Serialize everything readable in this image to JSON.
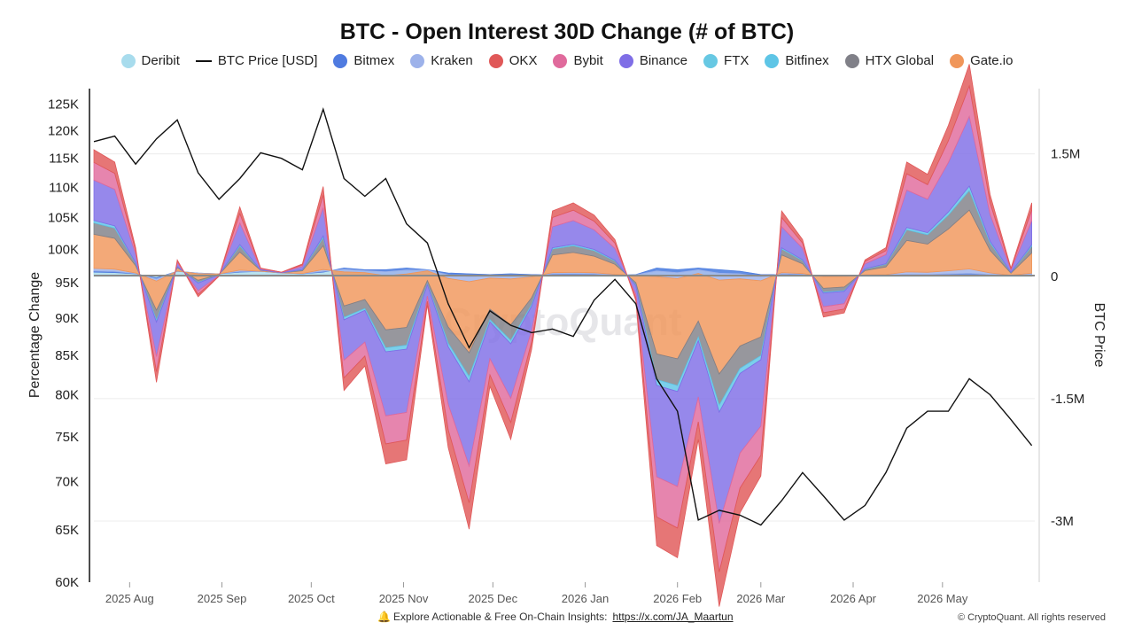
{
  "title": "BTC - Open Interest 30D Change (# of BTC)",
  "legend": [
    {
      "label": "Deribit",
      "color": "#a8dced",
      "kind": "dot"
    },
    {
      "label": "BTC Price [USD]",
      "color": "#111111",
      "kind": "line"
    },
    {
      "label": "Bitmex",
      "color": "#4f7be0",
      "kind": "dot"
    },
    {
      "label": "Kraken",
      "color": "#9db2ea",
      "kind": "dot"
    },
    {
      "label": "OKX",
      "color": "#e05858",
      "kind": "dot"
    },
    {
      "label": "Bybit",
      "color": "#e06a9c",
      "kind": "dot"
    },
    {
      "label": "Binance",
      "color": "#7f6ee6",
      "kind": "dot"
    },
    {
      "label": "FTX",
      "color": "#67c8e3",
      "kind": "dot"
    },
    {
      "label": "Bitfinex",
      "color": "#5ec5e6",
      "kind": "dot"
    },
    {
      "label": "HTX Global",
      "color": "#808088",
      "kind": "dot"
    },
    {
      "label": "Gate.io",
      "color": "#f0965a",
      "kind": "dot"
    }
  ],
  "watermark": "CryptoQuant",
  "footer": {
    "text": "Explore Actionable & Free On-Chain Insights:",
    "link": "https://x.com/JA_Maartun",
    "copyright": "© CryptoQuant. All rights reserved",
    "icon": "bell-icon"
  },
  "chart_data": {
    "type": "area",
    "title": "BTC - Open Interest 30D Change (# of BTC)",
    "x_tick_labels": [
      "2025 Aug",
      "2025 Sep",
      "2025 Oct",
      "2025 Nov",
      "2025 Dec",
      "2026 Jan",
      "2026 Feb",
      "2026 Mar",
      "2026 Apr",
      "2026 May"
    ],
    "x_range": [
      "2025-07-20",
      "2026-06-01"
    ],
    "left_axis": {
      "label": "Percentage Change",
      "ticks": [
        "125K",
        "120K",
        "115K",
        "110K",
        "105K",
        "100K",
        "95K",
        "90K",
        "85K",
        "80K",
        "75K",
        "70K",
        "65K",
        "60K"
      ],
      "tick_values": [
        125000,
        120000,
        115000,
        110000,
        105000,
        100000,
        95000,
        90000,
        85000,
        80000,
        75000,
        70000,
        65000,
        60000
      ],
      "scale": "log",
      "range": [
        60000,
        128000
      ]
    },
    "right_axis": {
      "label": "BTC Price",
      "ticks": [
        "1.5M",
        "0",
        "-1.5M",
        "-3M"
      ],
      "tick_values": [
        1500000,
        0,
        -1500000,
        -3000000
      ],
      "range": [
        -3750000,
        2300000
      ]
    },
    "grid": "horizontal at right-axis ticks",
    "stack_order": [
      "Deribit",
      "Bitmex",
      "Kraken",
      "Gate.io",
      "HTX Global",
      "Bitfinex",
      "Binance",
      "Bybit",
      "OKX"
    ],
    "open_interest_total_change": {
      "dates": [
        "2025-07-20",
        "2025-07-27",
        "2025-08-03",
        "2025-08-10",
        "2025-08-17",
        "2025-08-24",
        "2025-08-31",
        "2025-09-07",
        "2025-09-14",
        "2025-09-21",
        "2025-09-28",
        "2025-10-05",
        "2025-10-12",
        "2025-10-19",
        "2025-10-26",
        "2025-11-02",
        "2025-11-09",
        "2025-11-16",
        "2025-11-23",
        "2025-11-30",
        "2025-12-07",
        "2025-12-14",
        "2025-12-21",
        "2025-12-28",
        "2026-01-04",
        "2026-01-11",
        "2026-01-18",
        "2026-01-25",
        "2026-02-01",
        "2026-02-08",
        "2026-02-15",
        "2026-02-22",
        "2026-03-01",
        "2026-03-08",
        "2026-03-15",
        "2026-03-22",
        "2026-03-29",
        "2026-04-05",
        "2026-04-12",
        "2026-04-19",
        "2026-04-26",
        "2026-05-03",
        "2026-05-10",
        "2026-05-17",
        "2026-05-24",
        "2026-05-31"
      ],
      "values": [
        1550000,
        1400000,
        350000,
        -1300000,
        200000,
        -250000,
        0,
        850000,
        100000,
        50000,
        150000,
        1100000,
        -1400000,
        -1100000,
        -2300000,
        -2250000,
        -350000,
        -2100000,
        -3100000,
        -1350000,
        -2000000,
        -900000,
        800000,
        900000,
        750000,
        450000,
        -300000,
        -3300000,
        -3450000,
        -2000000,
        -4050000,
        -2900000,
        -2450000,
        800000,
        450000,
        -500000,
        -450000,
        200000,
        350000,
        1400000,
        1250000,
        1850000,
        2600000,
        1000000,
        100000,
        900000
      ],
      "series": [
        {
          "name": "Deribit",
          "share": 0.03,
          "values": [
            50000,
            45000,
            30000,
            -20000,
            60000,
            40000,
            30000,
            50000,
            60000,
            40000,
            30000,
            50000,
            100000,
            80000,
            80000,
            100000,
            80000,
            40000,
            30000,
            20000,
            30000,
            20000,
            20000,
            20000,
            20000,
            10000,
            20000,
            100000,
            80000,
            100000,
            80000,
            60000,
            20000,
            20000,
            20000,
            10000,
            10000,
            10000,
            10000,
            10000,
            10000,
            10000,
            10000,
            10000,
            10000,
            10000
          ]
        },
        {
          "name": "Bitmex",
          "share": 0.01
        },
        {
          "name": "Kraken",
          "share": 0.02
        },
        {
          "name": "Gate.io",
          "share": 0.27
        },
        {
          "name": "HTX Global",
          "share": 0.09
        },
        {
          "name": "Bitfinex",
          "share": 0.02
        },
        {
          "name": "Binance",
          "share": 0.32
        },
        {
          "name": "Bybit",
          "share": 0.14
        },
        {
          "name": "OKX",
          "share": 0.1
        }
      ]
    },
    "btc_price": {
      "name": "BTC Price [USD]",
      "dates": [
        "2025-07-20",
        "2025-07-27",
        "2025-08-03",
        "2025-08-10",
        "2025-08-17",
        "2025-08-24",
        "2025-08-31",
        "2025-09-07",
        "2025-09-14",
        "2025-09-21",
        "2025-09-28",
        "2025-10-05",
        "2025-10-12",
        "2025-10-19",
        "2025-10-26",
        "2025-11-02",
        "2025-11-09",
        "2025-11-16",
        "2025-11-23",
        "2025-11-30",
        "2025-12-07",
        "2025-12-14",
        "2025-12-21",
        "2025-12-28",
        "2026-01-04",
        "2026-01-11",
        "2026-01-18",
        "2026-01-25",
        "2026-02-01",
        "2026-02-08",
        "2026-02-15",
        "2026-02-22",
        "2026-03-01",
        "2026-03-08",
        "2026-03-15",
        "2026-03-22",
        "2026-03-29",
        "2026-04-05",
        "2026-04-12",
        "2026-04-19",
        "2026-04-26",
        "2026-05-03",
        "2026-05-10",
        "2026-05-17",
        "2026-05-24",
        "2026-05-31"
      ],
      "values": [
        118000,
        119000,
        114000,
        118500,
        122000,
        112500,
        108000,
        111500,
        116000,
        115000,
        113000,
        124000,
        111500,
        108500,
        111500,
        104000,
        101000,
        92000,
        86000,
        91000,
        89000,
        88000,
        88500,
        87500,
        92500,
        95500,
        92000,
        82000,
        78000,
        66000,
        67000,
        66500,
        65500,
        68000,
        71000,
        68500,
        66000,
        67500,
        71000,
        76000,
        78000,
        78000,
        82000,
        80000,
        77000,
        74000
      ]
    }
  }
}
